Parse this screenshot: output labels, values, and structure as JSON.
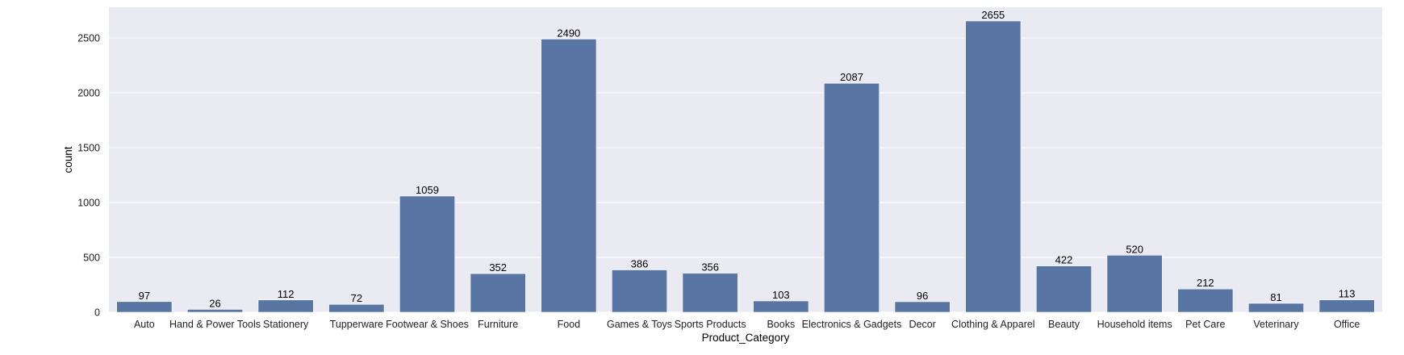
{
  "chart_data": {
    "type": "bar",
    "xlabel": "Product_Category",
    "ylabel": "count",
    "ylim": [
      0,
      2780
    ],
    "yticks": [
      0,
      500,
      1000,
      1500,
      2000,
      2500
    ],
    "grid": true,
    "categories": [
      "Auto",
      "Hand & Power Tools",
      "Stationery",
      "Tupperware",
      "Footwear & Shoes",
      "Furniture",
      "Food",
      "Games & Toys",
      "Sports Products",
      "Books",
      "Electronics & Gadgets",
      "Decor",
      "Clothing & Apparel",
      "Beauty",
      "Household items",
      "Pet Care",
      "Veterinary",
      "Office"
    ],
    "values": [
      97,
      26,
      112,
      72,
      1059,
      352,
      2490,
      386,
      356,
      103,
      2087,
      96,
      2655,
      422,
      520,
      212,
      81,
      113
    ],
    "bar_color": "#5975a4",
    "background_color": "#eaeaf2",
    "grid_color": "#ffffff"
  }
}
